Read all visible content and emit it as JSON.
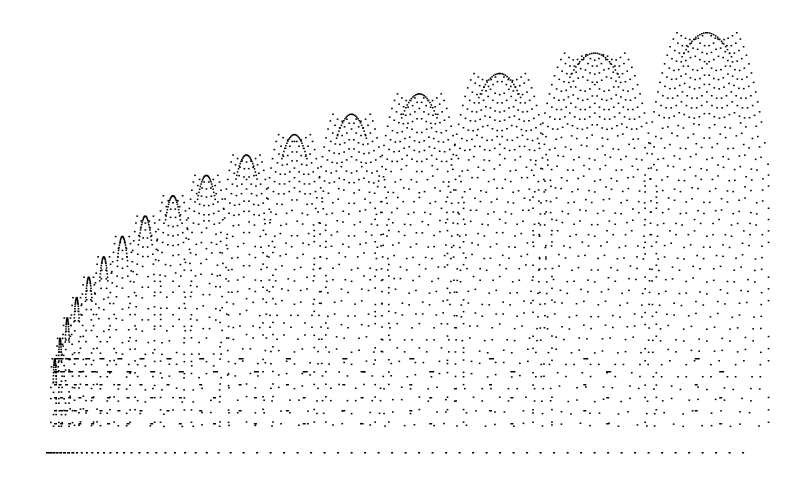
{
  "figure": {
    "background": "#ffffff",
    "dot_color": "#000000",
    "lobe_count": 17,
    "lobe_shape": "arch",
    "baseline": true,
    "arc_dot_pattern": "dashed"
  }
}
